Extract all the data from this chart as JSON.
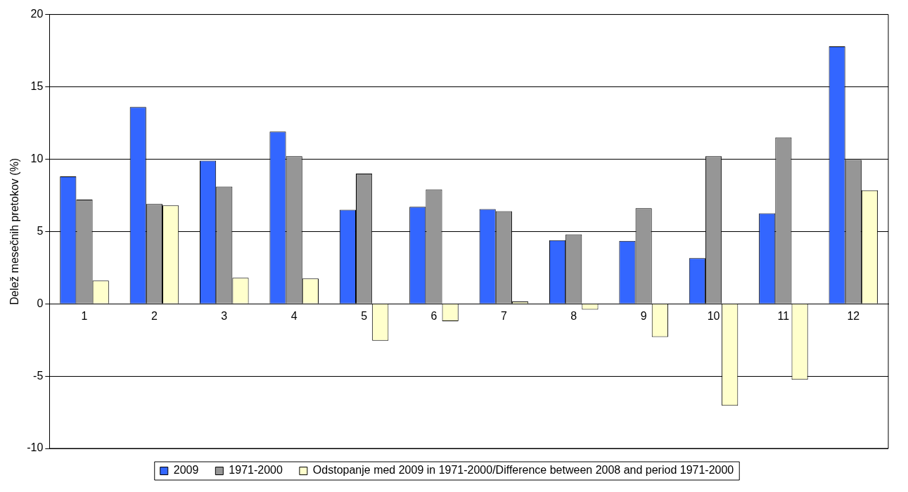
{
  "chart_data": {
    "type": "bar",
    "ylabel": "Delež mesečnih pretokov (%)",
    "categories": [
      "1",
      "2",
      "3",
      "4",
      "5",
      "6",
      "7",
      "8",
      "9",
      "10",
      "11",
      "12"
    ],
    "series": [
      {
        "name": "2009",
        "color": "#3366ff",
        "values": [
          8.8,
          13.6,
          9.9,
          11.9,
          6.5,
          6.7,
          6.55,
          4.4,
          4.35,
          3.15,
          6.25,
          17.8
        ]
      },
      {
        "name": "1971-2000",
        "color": "#969696",
        "values": [
          7.2,
          6.9,
          8.1,
          10.2,
          9.0,
          7.9,
          6.4,
          4.8,
          6.6,
          10.2,
          11.5,
          9.95
        ]
      },
      {
        "name": "Odstopanje med 2009 in 1971-2000/Difference between 2008 and period 1971-2000",
        "color": "#ffffcc",
        "values": [
          1.6,
          6.8,
          1.8,
          1.75,
          -2.55,
          -1.2,
          0.15,
          -0.4,
          -2.3,
          -7.05,
          -5.25,
          7.85
        ]
      }
    ],
    "ylim": [
      -10,
      20
    ],
    "yticks": [
      -10,
      -5,
      0,
      5,
      10,
      15,
      20
    ],
    "grid": "y",
    "legend": "bottom"
  }
}
